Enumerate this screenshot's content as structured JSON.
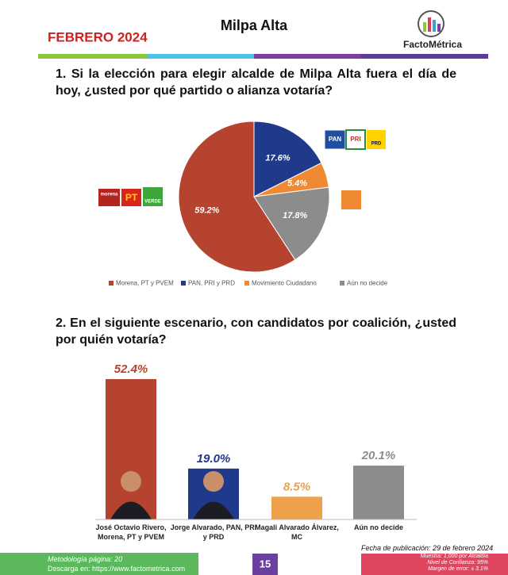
{
  "header": {
    "date": "FEBRERO 2024",
    "title": "Milpa Alta",
    "brand": "FactoMétrica"
  },
  "logos": {
    "alliance_left": [
      "morena",
      "PT",
      "VERDE"
    ],
    "alliance_right": [
      "PAN",
      "PRI",
      "PRD"
    ]
  },
  "chart_data": [
    {
      "type": "pie",
      "title": "1. Si la elección para elegir alcalde de Milpa Alta fuera el día de hoy, ¿usted por qué partido o alianza votaría?",
      "categories": [
        "Morena, PT y PVEM",
        "PAN, PRI y PRD",
        "Movimiento Ciudadano",
        "Aún no decide"
      ],
      "values": [
        59.2,
        17.6,
        5.4,
        17.8
      ],
      "value_labels": [
        "59.2%",
        "17.6%",
        "5.4%",
        "17.8%"
      ],
      "colors": [
        "#b5432f",
        "#1f3a8a",
        "#ef8a33",
        "#8c8c8c"
      ],
      "legend": "bottom"
    },
    {
      "type": "bar",
      "title": "2. En el siguiente escenario, con candidatos por coalición, ¿usted por quién votaría?",
      "categories": [
        "José Octavio Rivero, Morena, PT y PVEM",
        "Jorge Alvarado, PAN, PRI y PRD",
        "Magali Alvarado Álvarez, MC",
        "Aún no decide"
      ],
      "values": [
        52.4,
        19.0,
        8.5,
        20.1
      ],
      "value_labels": [
        "52.4%",
        "19.0%",
        "8.5%",
        "20.1%"
      ],
      "colors": [
        "#b5432f",
        "#1f3a8a",
        "#efa04b",
        "#8c8c8c"
      ]
    }
  ],
  "footer": {
    "method": "Metodología página: 20",
    "download": "Descarga en: https://www.factometrica.com",
    "page": 15,
    "published": "Fecha de publicación: 29 de febrero 2024",
    "sample": "Muestra: 1,000 por Alcaldía",
    "confidence": "Nivel de Confianza: 95%",
    "error": "Margen de error: ± 3.1%"
  }
}
